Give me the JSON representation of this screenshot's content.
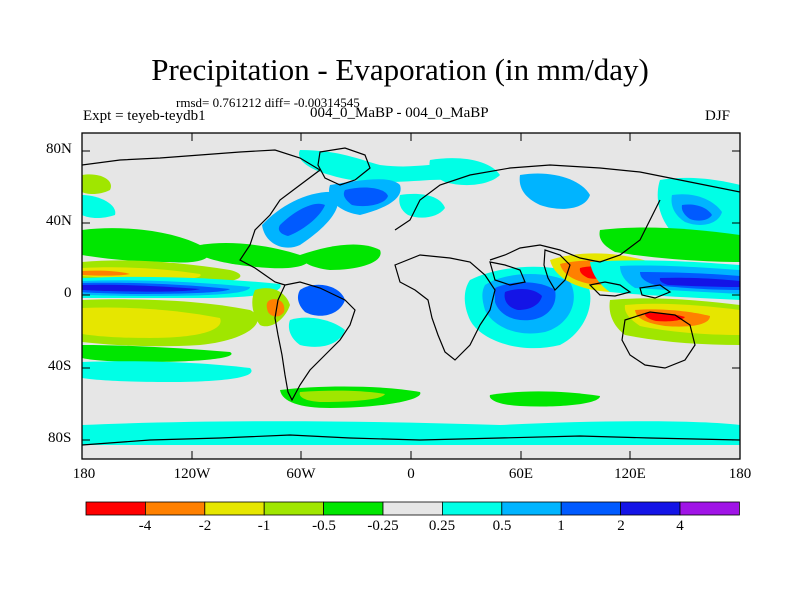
{
  "title": "Precipitation - Evaporation (in mm/day)",
  "stats_line": "rmsd= 0.761212 diff= -0.00314545",
  "expt_label": "Expt = teyeb-teydb1",
  "subtitle": "004_0_MaBP - 004_0_MaBP",
  "season": "DJF",
  "axes": {
    "y_ticks": [
      "80N",
      "40N",
      "0",
      "40S",
      "80S"
    ],
    "x_ticks": [
      "180",
      "120W",
      "60W",
      "0",
      "60E",
      "120E",
      "180"
    ]
  },
  "colorbar": {
    "labels": [
      "-4",
      "-2",
      "-1",
      "-0.5",
      "-0.25",
      "0.25",
      "0.5",
      "1",
      "2",
      "4"
    ],
    "colors": [
      "#ff0000",
      "#ff8000",
      "#e6e600",
      "#a0e600",
      "#00e600",
      "#e6e6e6",
      "#00ffe6",
      "#00b4ff",
      "#005aff",
      "#1414e6",
      "#a014e6"
    ]
  },
  "palette": {
    "land_background": "#e6e6e6",
    "coastline": "#000000"
  }
}
